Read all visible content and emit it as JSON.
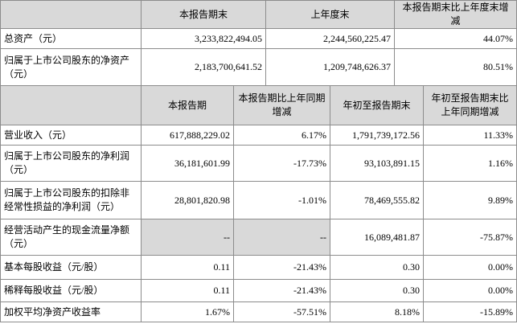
{
  "table1": {
    "header": [
      "本报告期末",
      "上年度末",
      "本报告期末比上年度末增减"
    ],
    "rows": [
      [
        "总资产（元）",
        "3,233,822,494.05",
        "2,244,560,225.47",
        "44.07%"
      ],
      [
        "归属于上市公司股东的净资产（元）",
        "2,183,700,641.52",
        "1,209,748,626.37",
        "80.51%"
      ]
    ]
  },
  "table2": {
    "header": [
      "本报告期",
      "本报告期比上年同期增减",
      "年初至报告期末",
      "年初至报告期末比上年同期增减"
    ],
    "rows": [
      [
        "营业收入（元）",
        "617,888,229.02",
        "6.17%",
        "1,791,739,172.56",
        "11.33%"
      ],
      [
        "归属于上市公司股东的净利润（元）",
        "36,181,601.99",
        "-17.73%",
        "93,103,891.15",
        "1.16%"
      ],
      [
        "归属于上市公司股东的扣除非经常性损益的净利润（元）",
        "28,801,820.98",
        "-1.01%",
        "78,469,555.82",
        "9.89%"
      ],
      [
        "经营活动产生的现金流量净额（元）",
        "--",
        "--",
        "16,089,481.87",
        "-75.87%"
      ],
      [
        "基本每股收益（元/股）",
        "0.11",
        "-21.43%",
        "0.30",
        "0.00%"
      ],
      [
        "稀释每股收益（元/股）",
        "0.11",
        "-21.43%",
        "0.30",
        "0.00%"
      ],
      [
        "加权平均净资产收益率",
        "1.67%",
        "-57.51%",
        "8.18%",
        "-15.89%"
      ]
    ]
  }
}
